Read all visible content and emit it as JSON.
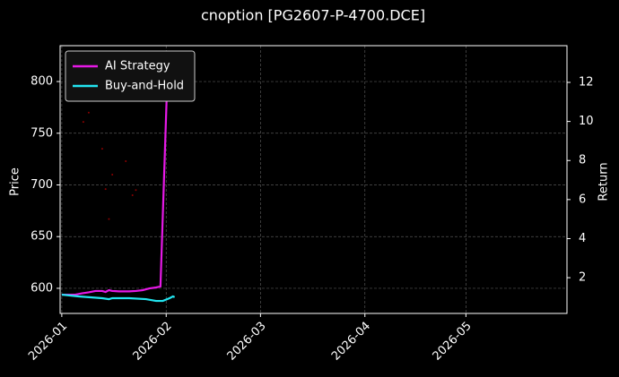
{
  "chart_data": {
    "type": "line",
    "title": "cnoption [PG2607-P-4700.DCE]",
    "y_label": "Price",
    "y2_label": "Return",
    "xlim": [
      -0.5,
      150
    ],
    "xticks": [
      {
        "value": 0,
        "label": "2026-01"
      },
      {
        "value": 31,
        "label": "2026-02"
      },
      {
        "value": 59,
        "label": "2026-03"
      },
      {
        "value": 90,
        "label": "2026-04"
      },
      {
        "value": 120,
        "label": "2026-05"
      }
    ],
    "ylim": [
      575.7,
      834.7
    ],
    "yticks": [
      600,
      650,
      700,
      750,
      800
    ],
    "y2lim": [
      0.17,
      13.88
    ],
    "y2ticks": [
      2,
      4,
      6,
      8,
      10,
      12
    ],
    "grid": true,
    "legend": "upper left",
    "series": [
      {
        "color": "#8b0000",
        "axis": "y",
        "style": "dots",
        "x": [
          6.4,
          8,
          12,
          13,
          14,
          15,
          19,
          21,
          22
        ],
        "values": [
          761,
          770,
          735,
          696,
          667,
          710,
          723,
          690,
          695
        ]
      },
      {
        "name": "AI Strategy",
        "color": "#e619e6",
        "axis": "y2",
        "style": "line",
        "x": [
          0,
          2,
          4,
          6,
          8,
          10,
          12,
          13,
          14,
          15,
          17,
          20,
          22,
          24,
          26,
          28,
          29.3,
          31.5
        ],
        "values": [
          1.13,
          1.13,
          1.13,
          1.2,
          1.25,
          1.32,
          1.32,
          1.27,
          1.36,
          1.32,
          1.3,
          1.3,
          1.32,
          1.36,
          1.45,
          1.5,
          1.55,
          13.1
        ]
      },
      {
        "name": "Buy-and-Hold",
        "color": "#22e5f0",
        "axis": "y2",
        "style": "line",
        "x": [
          0,
          5,
          12,
          14,
          15,
          20,
          25,
          28,
          30,
          32,
          33,
          33.5
        ],
        "values": [
          1.13,
          1.04,
          0.95,
          0.9,
          0.95,
          0.95,
          0.9,
          0.81,
          0.81,
          0.95,
          1.04,
          1.0
        ]
      }
    ]
  }
}
